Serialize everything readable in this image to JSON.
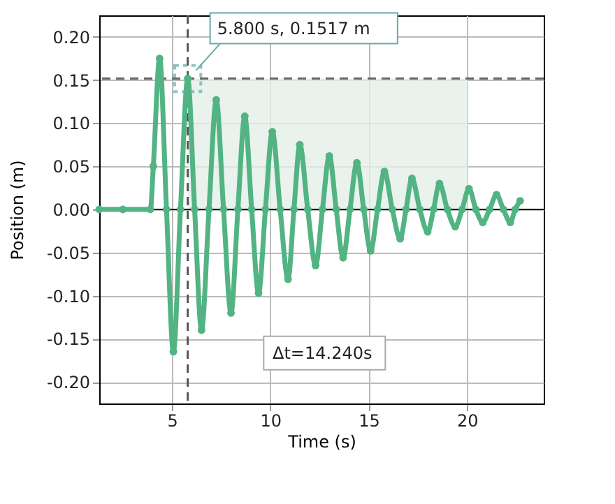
{
  "chart_data": {
    "type": "line",
    "xlabel": "Time (s)",
    "ylabel": "Position (m)",
    "x": [
      1.3,
      2.5,
      3.9,
      4.05,
      4.37,
      4.72,
      5.07,
      5.43,
      5.8,
      6.15,
      6.5,
      6.88,
      7.25,
      7.62,
      8.0,
      8.35,
      8.7,
      9.05,
      9.4,
      9.75,
      10.1,
      10.5,
      10.9,
      11.2,
      11.5,
      11.9,
      12.3,
      12.65,
      13.0,
      13.35,
      13.7,
      14.05,
      14.4,
      14.75,
      15.1,
      15.45,
      15.8,
      16.2,
      16.6,
      16.9,
      17.2,
      17.6,
      18.0,
      18.3,
      18.6,
      19.0,
      19.4,
      19.75,
      20.1,
      20.45,
      20.8,
      21.15,
      21.5,
      21.85,
      22.2,
      22.45,
      22.7
    ],
    "series": [
      {
        "color": "#52b383",
        "values": [
          0,
          0,
          0,
          0.05,
          0.175,
          0,
          -0.165,
          0,
          0.1517,
          0,
          -0.14,
          0,
          0.127,
          0,
          -0.12,
          0,
          0.108,
          0,
          -0.097,
          0,
          0.09,
          0,
          -0.081,
          0,
          0.075,
          0,
          -0.065,
          0,
          0.062,
          0,
          -0.056,
          0,
          0.054,
          0,
          -0.048,
          0,
          0.044,
          0,
          -0.034,
          0,
          0.036,
          0,
          -0.026,
          0,
          0.03,
          0,
          -0.02,
          0,
          0.024,
          0,
          -0.015,
          0,
          0.017,
          0,
          -0.015,
          0,
          0.01
        ]
      }
    ],
    "xlim": [
      1.3,
      23.9
    ],
    "ylim": [
      -0.225,
      0.225
    ],
    "xticks": [
      5,
      10,
      15,
      20
    ],
    "yticks": [
      {
        "value": -0.2,
        "label": "-0.20"
      },
      {
        "value": -0.15,
        "label": "-0.15"
      },
      {
        "value": -0.1,
        "label": "-0.10"
      },
      {
        "value": -0.05,
        "label": "-0.05"
      },
      {
        "value": 0,
        "label": "0.00"
      },
      {
        "value": 0.05,
        "label": "0.05"
      },
      {
        "value": 0.1,
        "label": "0.10"
      },
      {
        "value": 0.15,
        "label": "0.15"
      },
      {
        "value": 0.2,
        "label": "0.20"
      }
    ],
    "ref_lines": [
      {
        "axis": "y",
        "value": 0,
        "color": "#000000",
        "line_style": "solid"
      },
      {
        "axis": "x",
        "value": 5.8,
        "color": "#555555",
        "line_style": "dashed"
      },
      {
        "axis": "y",
        "value": 0.1517,
        "color": "#666666",
        "line_style": "dashed"
      }
    ],
    "bands": [
      {
        "axis": "x",
        "from": 5.8,
        "to": 20.04,
        "color": "#e3efe9"
      }
    ],
    "annotations": [
      {
        "text": "5.800 s, 0.1517 m",
        "x": 5.8,
        "y": 0.1517
      },
      "Δt=14.240s"
    ],
    "grid": true,
    "marker": "circle",
    "line_style": "solid"
  }
}
